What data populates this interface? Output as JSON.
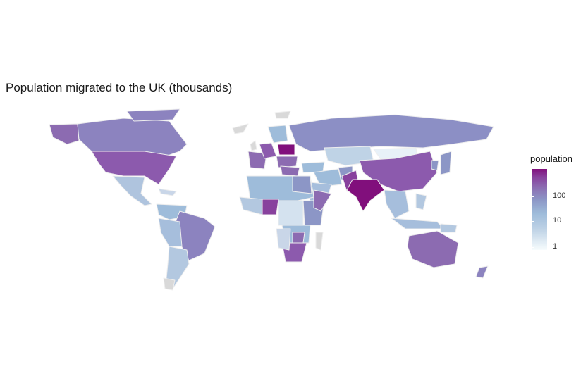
{
  "title": "Population migrated to the UK (thousands)",
  "legend": {
    "title": "population",
    "ticks": [
      "100",
      "10",
      "1"
    ],
    "scale": "log",
    "colors": [
      "#f7fcfd",
      "#bfd3e6",
      "#9ebcda",
      "#8c96c6",
      "#8c6bb1",
      "#88419d",
      "#810f7c"
    ]
  },
  "map": {
    "border_color": "#e5e5e5",
    "no_data_color": "#d9d9d9",
    "regions": [
      {
        "name": "India",
        "level": "very-high"
      },
      {
        "name": "Poland",
        "level": "very-high"
      },
      {
        "name": "Pakistan",
        "level": "high"
      },
      {
        "name": "Nigeria",
        "level": "high"
      },
      {
        "name": "China",
        "level": "high"
      },
      {
        "name": "USA",
        "level": "high"
      },
      {
        "name": "South Africa",
        "level": "high"
      },
      {
        "name": "Australia",
        "level": "high"
      },
      {
        "name": "Canada",
        "level": "medium-high"
      },
      {
        "name": "Brazil",
        "level": "medium"
      },
      {
        "name": "Russia",
        "level": "medium"
      },
      {
        "name": "Kazakhstan",
        "level": "low"
      },
      {
        "name": "Mongolia",
        "level": "very-low"
      }
    ]
  }
}
